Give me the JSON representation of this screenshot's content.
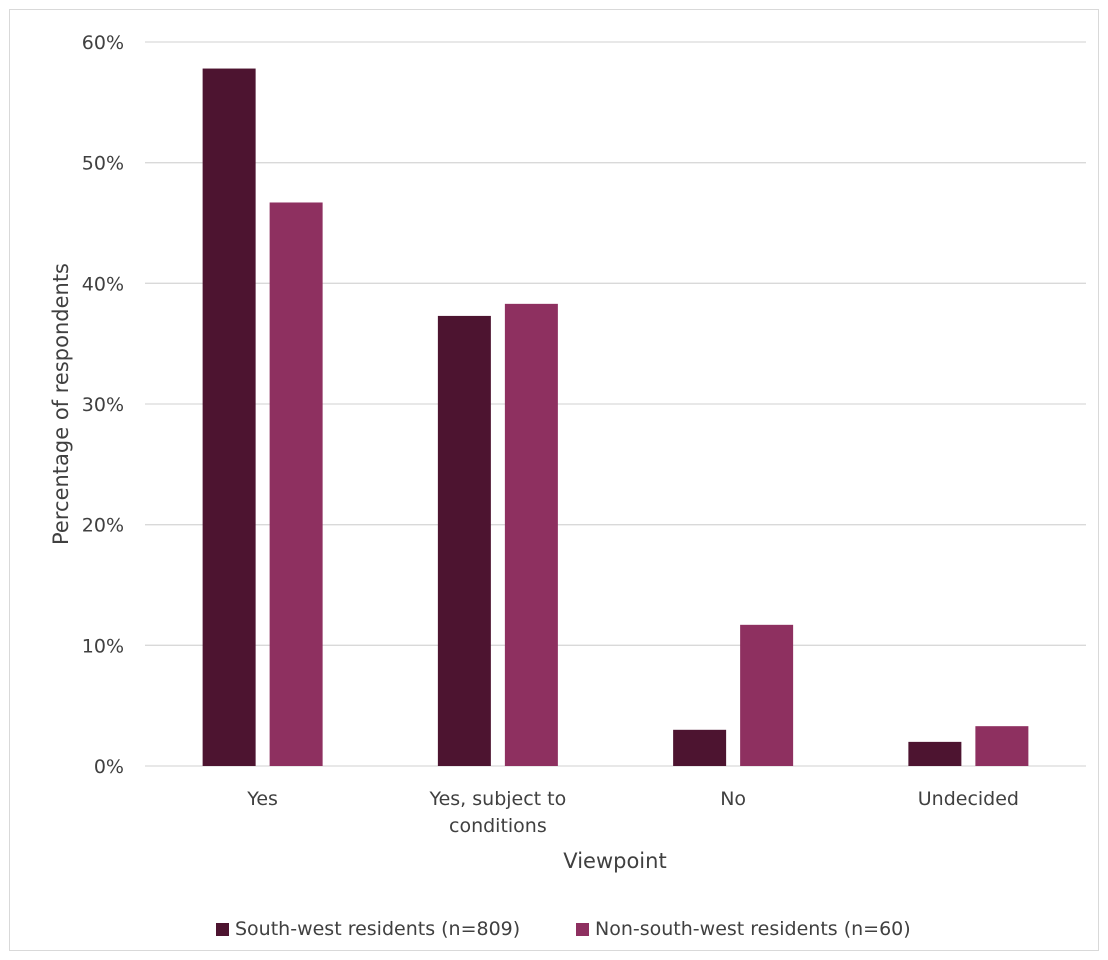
{
  "chart_data": {
    "type": "bar",
    "categories": [
      [
        "Yes"
      ],
      [
        "Yes, subject to",
        "conditions"
      ],
      [
        "No"
      ],
      [
        "Undecided"
      ]
    ],
    "series": [
      {
        "name": "South-west residents (n=809)",
        "color": "#4d1430",
        "values": [
          57.8,
          37.3,
          3.0,
          2.0
        ]
      },
      {
        "name": "Non-south-west residents (n=60)",
        "color": "#8e3060",
        "values": [
          46.7,
          38.3,
          11.7,
          3.3
        ]
      }
    ],
    "xlabel": "Viewpoint",
    "ylabel": "Percentage of respondents",
    "ylim": [
      0,
      60
    ],
    "yticks": [
      0,
      10,
      20,
      30,
      40,
      50,
      60
    ],
    "ytick_labels": [
      "0%",
      "10%",
      "20%",
      "30%",
      "40%",
      "50%",
      "60%"
    ],
    "grid": true,
    "legend_position": "bottom"
  }
}
